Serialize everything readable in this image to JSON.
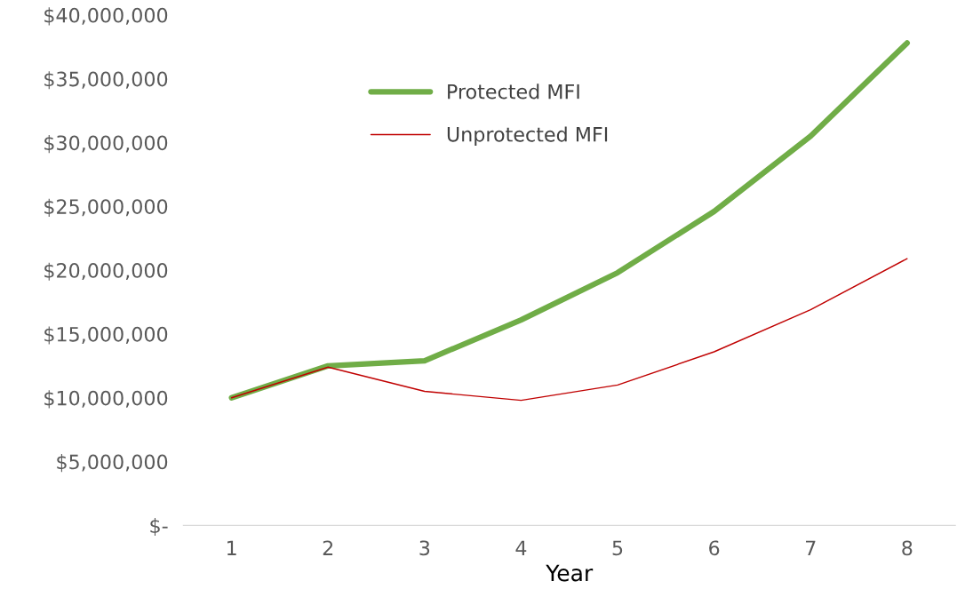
{
  "chart_data": {
    "type": "line",
    "xlabel": "Year",
    "categories": [
      "1",
      "2",
      "3",
      "4",
      "5",
      "6",
      "7",
      "8"
    ],
    "series": [
      {
        "name": "Protected MFI",
        "color": "#70ad47",
        "values": [
          10000000.0,
          12500000.0,
          12900000.0,
          16100000.0,
          19800000.0,
          24600000.0,
          30500000.0,
          37800000.0
        ]
      },
      {
        "name": "Unprotected MFI",
        "color": "#c00000",
        "values": [
          10000000.0,
          12400000.0,
          10500000.0,
          9800000.0,
          11000000.0,
          13600000.0,
          16900000.0,
          20900000.0
        ]
      }
    ],
    "ylim": [
      0,
      40000000
    ],
    "yticks": [
      {
        "value": 0,
        "label": "$-"
      },
      {
        "value": 5000000,
        "label": "$5,000,000"
      },
      {
        "value": 10000000,
        "label": "$10,000,000"
      },
      {
        "value": 15000000,
        "label": "$15,000,000"
      },
      {
        "value": 20000000,
        "label": "$20,000,000"
      },
      {
        "value": 25000000,
        "label": "$25,000,000"
      },
      {
        "value": 30000000,
        "label": "$30,000,000"
      },
      {
        "value": 35000000,
        "label": "$35,000,000"
      },
      {
        "value": 40000000,
        "label": "$40,000,000"
      }
    ],
    "grid": false,
    "legend": "top left",
    "marker": "none",
    "line_style": "solid"
  }
}
